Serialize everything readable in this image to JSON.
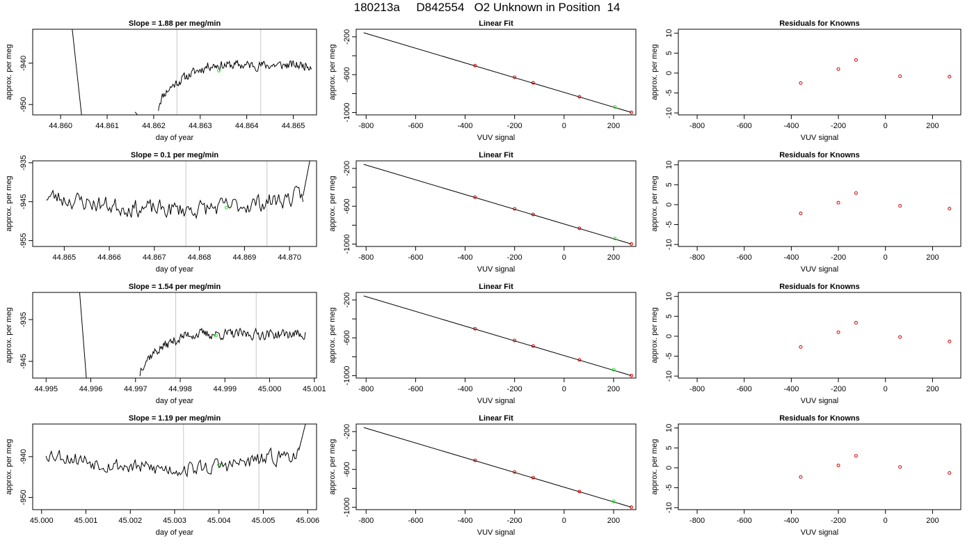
{
  "title": "180213a     D842554   O2 Unknown in Position  14",
  "colors": {
    "trace": "#000000",
    "known_point": "#cc0000",
    "unknown_point": "#22dd22",
    "window_line": "#c8c8c8"
  },
  "chart_data": [
    {
      "type": "line",
      "row": 1,
      "column": 1,
      "title": "Slope =  1.88  per meg/min",
      "xlabel": "day of year",
      "ylabel": "approx. per meg",
      "xlim": [
        44.8594,
        44.8655
      ],
      "ylim": [
        -952.5,
        -931.8
      ],
      "xticks": [
        44.86,
        44.861,
        44.862,
        44.863,
        44.864,
        44.865
      ],
      "xticklabels": [
        "44.860",
        "44.861",
        "44.862",
        "44.863",
        "44.864",
        "44.865"
      ],
      "yticks": [
        -950,
        -940
      ],
      "window_lines_x": [
        44.8625,
        44.8643
      ],
      "unknown_point": {
        "x": 44.8634,
        "y": -941.8
      },
      "trace": {
        "x_start": 44.8621,
        "x_end": 44.8654,
        "level": -940.5,
        "rise_from": -951,
        "rise_end": 44.8632,
        "noise": 1.3,
        "seed": 11,
        "spikes": [
          {
            "x_from": 44.86025,
            "x_to": 44.86045,
            "y_from": -931.8,
            "y_to": -952.5
          },
          {
            "x_from": 44.8616,
            "x_to": 44.86165,
            "y_from": -951.8,
            "y_to": -952.5
          }
        ]
      }
    },
    {
      "type": "scatter",
      "row": 1,
      "column": 2,
      "title": "Linear Fit",
      "xlabel": "VUV signal",
      "ylabel": "approx. per meg",
      "xlim": [
        -840,
        290
      ],
      "ylim": [
        -1025,
        -120
      ],
      "xticks": [
        -800,
        -600,
        -400,
        -200,
        0,
        200
      ],
      "yticks": [
        -200,
        -400,
        -600,
        -800,
        -1000
      ],
      "yticklabels": [
        "-200",
        "",
        "-600",
        "",
        "-1000"
      ],
      "fit_line": {
        "x": [
          -810,
          272
        ],
        "y": [
          -157,
          -999
        ]
      },
      "knowns": {
        "x": [
          -360,
          -200,
          -125,
          62,
          272
        ],
        "y": [
          -504,
          -628,
          -687,
          -834,
          -999
        ]
      },
      "unknown": {
        "x": 205,
        "y": -941
      }
    },
    {
      "type": "scatter",
      "row": 1,
      "column": 3,
      "title": "Residuals for Knowns",
      "xlabel": "VUV signal",
      "ylabel": "approx. per meg",
      "xlim": [
        -880,
        320
      ],
      "ylim": [
        -10.5,
        11
      ],
      "xticks": [
        -800,
        -600,
        -400,
        -200,
        0,
        200
      ],
      "yticks": [
        10,
        5,
        0,
        -5,
        -10
      ],
      "residuals": {
        "x": [
          -360,
          -200,
          -125,
          62,
          272
        ],
        "y": [
          -2.5,
          1,
          3.3,
          -0.8,
          -0.9
        ]
      }
    },
    {
      "type": "line",
      "row": 2,
      "column": 1,
      "title": "Slope =  0.1  per meg/min",
      "xlabel": "day of year",
      "ylabel": "approx. per meg",
      "xlim": [
        44.8643,
        44.8706
      ],
      "ylim": [
        -956.5,
        -934.5
      ],
      "xticks": [
        44.865,
        44.866,
        44.867,
        44.868,
        44.869,
        44.87
      ],
      "xticklabels": [
        "44.865",
        "44.866",
        "44.867",
        "44.868",
        "44.869",
        "44.870"
      ],
      "yticks": [
        -955,
        -945,
        -935
      ],
      "window_lines_x": [
        44.8677,
        44.8695
      ],
      "unknown_point": {
        "x": 44.8686,
        "y": -946.5
      },
      "trace": {
        "x_start": 44.8646,
        "x_end": 44.8703,
        "level": -943.5,
        "noise": 2.6,
        "drift": -3.5,
        "seed": 23,
        "spikes": [
          {
            "x_from": 44.8703,
            "x_to": 44.87045,
            "y_from": -943.5,
            "y_to": -934.5
          }
        ]
      }
    },
    {
      "type": "scatter",
      "row": 2,
      "column": 2,
      "title": "Linear Fit",
      "xlabel": "VUV signal",
      "ylabel": "approx. per meg",
      "xlim": [
        -840,
        290
      ],
      "ylim": [
        -1025,
        -120
      ],
      "xticks": [
        -800,
        -600,
        -400,
        -200,
        0,
        200
      ],
      "yticks": [
        -200,
        -400,
        -600,
        -800,
        -1000
      ],
      "yticklabels": [
        "-200",
        "",
        "-600",
        "",
        "-1000"
      ],
      "fit_line": {
        "x": [
          -810,
          272
        ],
        "y": [
          -157,
          -999
        ]
      },
      "knowns": {
        "x": [
          -360,
          -200,
          -125,
          62,
          272
        ],
        "y": [
          -504,
          -628,
          -687,
          -834,
          -999
        ]
      },
      "unknown": {
        "x": 205,
        "y": -941
      }
    },
    {
      "type": "scatter",
      "row": 2,
      "column": 3,
      "title": "Residuals for Knowns",
      "xlabel": "VUV signal",
      "ylabel": "approx. per meg",
      "xlim": [
        -880,
        320
      ],
      "ylim": [
        -10.5,
        11
      ],
      "xticks": [
        -800,
        -600,
        -400,
        -200,
        0,
        200
      ],
      "yticks": [
        10,
        5,
        0,
        -5,
        -10
      ],
      "residuals": {
        "x": [
          -360,
          -200,
          -125,
          62,
          272
        ],
        "y": [
          -2.2,
          0.5,
          2.9,
          -0.3,
          -1
        ]
      }
    },
    {
      "type": "line",
      "row": 3,
      "column": 1,
      "title": "Slope =  1.54  per meg/min",
      "xlabel": "day of year",
      "ylabel": "approx. per meg",
      "xlim": [
        44.9947,
        45.00105
      ],
      "ylim": [
        -949,
        -928.5
      ],
      "xticks": [
        44.995,
        44.996,
        44.997,
        44.998,
        44.999,
        45,
        45.001
      ],
      "xticklabels": [
        "44.995",
        "44.996",
        "44.997",
        "44.998",
        "44.999",
        "45.000",
        "45.001"
      ],
      "yticks": [
        -945,
        -935
      ],
      "window_lines_x": [
        44.9979,
        44.9997
      ],
      "unknown_point": {
        "x": 44.9988,
        "y": -938.8
      },
      "trace": {
        "x_start": 44.9971,
        "x_end": 45.0008,
        "level": -938.5,
        "rise_from": -948,
        "rise_end": 44.9982,
        "noise": 1.4,
        "seed": 37,
        "spikes": [
          {
            "x_from": 44.99575,
            "x_to": 44.9959,
            "y_from": -928.5,
            "y_to": -949
          }
        ]
      }
    },
    {
      "type": "scatter",
      "row": 3,
      "column": 2,
      "title": "Linear Fit",
      "xlabel": "VUV signal",
      "ylabel": "approx. per meg",
      "xlim": [
        -840,
        290
      ],
      "ylim": [
        -1025,
        -120
      ],
      "xticks": [
        -800,
        -600,
        -400,
        -200,
        0,
        200
      ],
      "yticks": [
        -200,
        -400,
        -600,
        -800,
        -1000
      ],
      "yticklabels": [
        "-200",
        "",
        "-600",
        "",
        "-1000"
      ],
      "fit_line": {
        "x": [
          -810,
          272
        ],
        "y": [
          -157,
          -999
        ]
      },
      "knowns": {
        "x": [
          -360,
          -200,
          -125,
          62,
          272
        ],
        "y": [
          -504,
          -628,
          -687,
          -834,
          -999
        ]
      },
      "unknown": {
        "x": 200,
        "y": -937
      }
    },
    {
      "type": "scatter",
      "row": 3,
      "column": 3,
      "title": "Residuals for Knowns",
      "xlabel": "VUV signal",
      "ylabel": "approx. per meg",
      "xlim": [
        -880,
        320
      ],
      "ylim": [
        -10.5,
        11
      ],
      "xticks": [
        -800,
        -600,
        -400,
        -200,
        0,
        200
      ],
      "yticks": [
        10,
        5,
        0,
        -5,
        -10
      ],
      "residuals": {
        "x": [
          -360,
          -200,
          -125,
          62,
          272
        ],
        "y": [
          -2.7,
          1,
          3.4,
          -0.2,
          -1.3
        ]
      }
    },
    {
      "type": "line",
      "row": 4,
      "column": 1,
      "title": "Slope =  1.19  per meg/min",
      "xlabel": "day of year",
      "ylabel": "approx. per meg",
      "xlim": [
        44.9998,
        45.0062
      ],
      "ylim": [
        -953,
        -932
      ],
      "xticks": [
        45,
        45.001,
        45.002,
        45.003,
        45.004,
        45.005,
        45.006
      ],
      "xticklabels": [
        "45.000",
        "45.001",
        "45.002",
        "45.003",
        "45.004",
        "45.005",
        "45.006"
      ],
      "yticks": [
        -950,
        -940
      ],
      "window_lines_x": [
        45.0032,
        45.0049
      ],
      "unknown_point": {
        "x": 45.004,
        "y": -942
      },
      "trace": {
        "x_start": 45.0001,
        "x_end": 45.0058,
        "level": -939,
        "noise": 2.2,
        "drift": -4,
        "seed": 53,
        "spikes": [
          {
            "x_from": 45.0058,
            "x_to": 45.00595,
            "y_from": -938.5,
            "y_to": -932
          }
        ]
      }
    },
    {
      "type": "scatter",
      "row": 4,
      "column": 2,
      "title": "Linear Fit",
      "xlabel": "VUV signal",
      "ylabel": "approx. per meg",
      "xlim": [
        -840,
        290
      ],
      "ylim": [
        -1025,
        -120
      ],
      "xticks": [
        -800,
        -600,
        -400,
        -200,
        0,
        200
      ],
      "yticks": [
        -200,
        -400,
        -600,
        -800,
        -1000
      ],
      "yticklabels": [
        "-200",
        "",
        "-600",
        "",
        "-1000"
      ],
      "fit_line": {
        "x": [
          -810,
          272
        ],
        "y": [
          -157,
          -999
        ]
      },
      "knowns": {
        "x": [
          -360,
          -200,
          -125,
          62,
          272
        ],
        "y": [
          -504,
          -628,
          -687,
          -834,
          -999
        ]
      },
      "unknown": {
        "x": 200,
        "y": -937
      }
    },
    {
      "type": "scatter",
      "row": 4,
      "column": 3,
      "title": "Residuals for Knowns",
      "xlabel": "VUV signal",
      "ylabel": "approx. per meg",
      "xlim": [
        -880,
        320
      ],
      "ylim": [
        -10.5,
        11
      ],
      "xticks": [
        -800,
        -600,
        -400,
        -200,
        0,
        200
      ],
      "yticks": [
        10,
        5,
        0,
        -5,
        -10
      ],
      "residuals": {
        "x": [
          -360,
          -200,
          -125,
          62,
          272
        ],
        "y": [
          -2.3,
          0.6,
          3,
          0.2,
          -1.3
        ]
      }
    }
  ]
}
